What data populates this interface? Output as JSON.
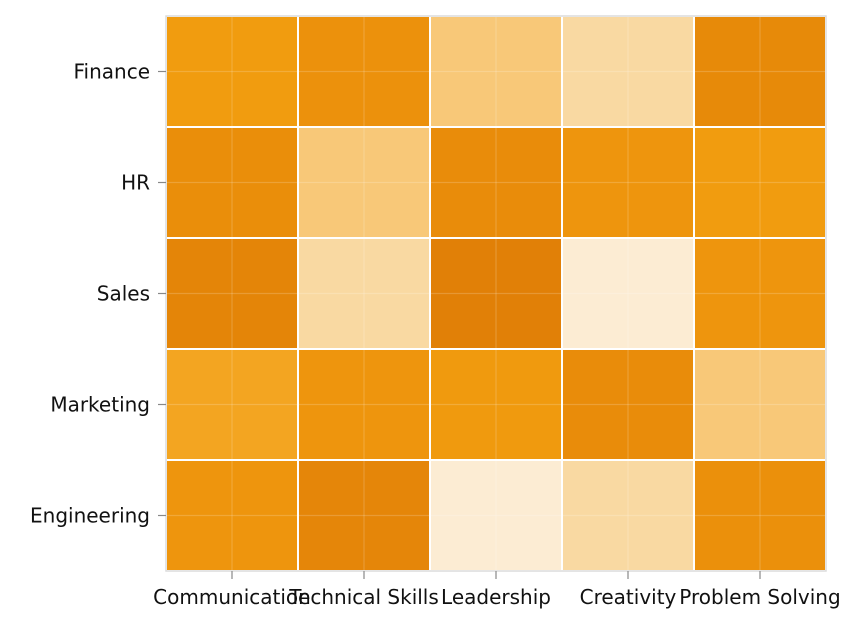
{
  "chart_data": {
    "type": "heatmap",
    "title": "",
    "xlabel": "",
    "ylabel": "",
    "x_categories": [
      "Communication",
      "Technical Skills",
      "Leadership",
      "Creativity",
      "Problem Solving"
    ],
    "y_categories": [
      "Finance",
      "HR",
      "Sales",
      "Marketing",
      "Engineering"
    ],
    "values": [
      [
        0.62,
        0.74,
        0.3,
        0.18,
        0.82
      ],
      [
        0.78,
        0.3,
        0.8,
        0.7,
        0.62
      ],
      [
        0.86,
        0.18,
        0.9,
        0.05,
        0.7
      ],
      [
        0.55,
        0.7,
        0.65,
        0.8,
        0.3
      ],
      [
        0.7,
        0.85,
        0.05,
        0.18,
        0.76
      ]
    ],
    "value_range": [
      0,
      1
    ],
    "colormap": [
      "#fdf3e6",
      "#f9d69a",
      "#f7b955",
      "#f29e0f",
      "#e98c0a",
      "#d97404"
    ],
    "grid": true
  }
}
